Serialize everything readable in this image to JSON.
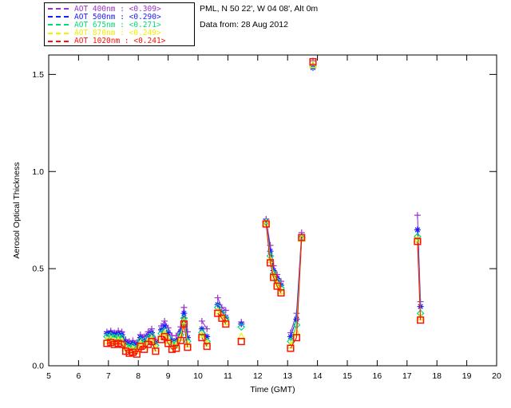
{
  "header": {
    "location_line": "PML, N 50 22', W 04 08', Alt 0m",
    "date_line": "Data from: 28 Aug 2012"
  },
  "chart_data": {
    "type": "line",
    "title": "",
    "xlabel": "Time (GMT)",
    "ylabel": "Aerosol Optical Thickness",
    "xlim": [
      5,
      20
    ],
    "ylim": [
      0,
      1.6
    ],
    "xticks": [
      5,
      6,
      7,
      8,
      9,
      10,
      11,
      12,
      13,
      14,
      15,
      16,
      17,
      18,
      19,
      20
    ],
    "yticks": [
      0.0,
      0.5,
      1.0,
      1.5
    ],
    "grid": false,
    "legend_position": "outside-top-left",
    "series": [
      {
        "name": "AOT 400nm",
        "mean": "<0.309>",
        "legend_label": "AOT  400nm : <0.309>",
        "color": "#9933cc",
        "symbol": "plus",
        "segments": [
          [
            [
              6.95,
              0.175
            ],
            [
              7.08,
              0.18
            ],
            [
              7.2,
              0.17
            ],
            [
              7.33,
              0.18
            ],
            [
              7.45,
              0.175
            ],
            [
              7.58,
              0.135
            ],
            [
              7.7,
              0.125
            ],
            [
              7.82,
              0.13
            ],
            [
              7.95,
              0.12
            ],
            [
              8.07,
              0.16
            ],
            [
              8.2,
              0.15
            ],
            [
              8.33,
              0.175
            ],
            [
              8.45,
              0.19
            ],
            [
              8.58,
              0.135
            ]
          ],
          [
            [
              8.77,
              0.205
            ],
            [
              8.88,
              0.23
            ],
            [
              9.0,
              0.195
            ],
            [
              9.13,
              0.155
            ],
            [
              9.27,
              0.155
            ],
            [
              9.42,
              0.2
            ],
            [
              9.53,
              0.3
            ],
            [
              9.65,
              0.175
            ]
          ],
          [
            [
              10.13,
              0.23
            ],
            [
              10.3,
              0.19
            ]
          ],
          [
            [
              10.66,
              0.35
            ],
            [
              10.8,
              0.3
            ],
            [
              10.93,
              0.285
            ]
          ],
          [
            [
              11.45,
              0.225
            ]
          ],
          [
            [
              12.28,
              0.755
            ],
            [
              12.42,
              0.62
            ],
            [
              12.53,
              0.515
            ],
            [
              12.65,
              0.47
            ],
            [
              12.78,
              0.435
            ]
          ],
          [
            [
              13.1,
              0.17
            ],
            [
              13.3,
              0.27
            ],
            [
              13.47,
              0.685
            ]
          ],
          [
            [
              13.85,
              1.57
            ]
          ],
          [
            [
              17.35,
              0.775
            ],
            [
              17.45,
              0.33
            ]
          ]
        ]
      },
      {
        "name": "AOT 500nm",
        "mean": "<0.290>",
        "legend_label": "AOT  500nm : <0.290>",
        "color": "#1a1aff",
        "symbol": "asterisk",
        "segments": [
          [
            [
              6.95,
              0.165
            ],
            [
              7.08,
              0.17
            ],
            [
              7.2,
              0.16
            ],
            [
              7.33,
              0.165
            ],
            [
              7.45,
              0.16
            ],
            [
              7.58,
              0.12
            ],
            [
              7.7,
              0.11
            ],
            [
              7.82,
              0.115
            ],
            [
              7.95,
              0.105
            ],
            [
              8.07,
              0.145
            ],
            [
              8.2,
              0.13
            ],
            [
              8.33,
              0.155
            ],
            [
              8.45,
              0.17
            ],
            [
              8.58,
              0.12
            ]
          ],
          [
            [
              8.77,
              0.185
            ],
            [
              8.88,
              0.205
            ],
            [
              9.0,
              0.17
            ],
            [
              9.13,
              0.13
            ],
            [
              9.27,
              0.13
            ],
            [
              9.42,
              0.175
            ],
            [
              9.53,
              0.27
            ],
            [
              9.65,
              0.145
            ]
          ],
          [
            [
              10.13,
              0.19
            ],
            [
              10.3,
              0.15
            ]
          ],
          [
            [
              10.66,
              0.315
            ],
            [
              10.8,
              0.275
            ],
            [
              10.93,
              0.25
            ]
          ],
          [
            [
              11.45,
              0.215
            ]
          ],
          [
            [
              12.28,
              0.745
            ],
            [
              12.42,
              0.59
            ],
            [
              12.53,
              0.49
            ],
            [
              12.65,
              0.45
            ],
            [
              12.78,
              0.415
            ]
          ],
          [
            [
              13.1,
              0.15
            ],
            [
              13.3,
              0.24
            ],
            [
              13.47,
              0.665
            ]
          ],
          [
            [
              13.85,
              1.535
            ]
          ],
          [
            [
              17.35,
              0.7
            ],
            [
              17.45,
              0.305
            ]
          ]
        ]
      },
      {
        "name": "AOT 675nm",
        "mean": "<0.271>",
        "legend_label": "AOT  675nm : <0.271>",
        "color": "#00dd77",
        "symbol": "diamond",
        "segments": [
          [
            [
              6.95,
              0.15
            ],
            [
              7.08,
              0.155
            ],
            [
              7.2,
              0.145
            ],
            [
              7.33,
              0.15
            ],
            [
              7.45,
              0.145
            ],
            [
              7.58,
              0.105
            ],
            [
              7.7,
              0.095
            ],
            [
              7.82,
              0.1
            ],
            [
              7.95,
              0.09
            ],
            [
              8.07,
              0.13
            ],
            [
              8.2,
              0.115
            ],
            [
              8.33,
              0.14
            ],
            [
              8.45,
              0.155
            ],
            [
              8.58,
              0.105
            ]
          ],
          [
            [
              8.77,
              0.165
            ],
            [
              8.88,
              0.18
            ],
            [
              9.0,
              0.145
            ],
            [
              9.13,
              0.115
            ],
            [
              9.27,
              0.115
            ],
            [
              9.42,
              0.16
            ],
            [
              9.53,
              0.245
            ],
            [
              9.65,
              0.125
            ]
          ],
          [
            [
              10.13,
              0.17
            ],
            [
              10.3,
              0.125
            ]
          ],
          [
            [
              10.66,
              0.3
            ],
            [
              10.8,
              0.27
            ],
            [
              10.93,
              0.24
            ]
          ],
          [
            [
              11.45,
              0.2
            ]
          ],
          [
            [
              12.28,
              0.74
            ],
            [
              12.42,
              0.565
            ],
            [
              12.53,
              0.475
            ],
            [
              12.65,
              0.435
            ],
            [
              12.78,
              0.4
            ]
          ],
          [
            [
              13.1,
              0.125
            ],
            [
              13.3,
              0.21
            ],
            [
              13.47,
              0.66
            ]
          ],
          [
            [
              13.85,
              1.545
            ]
          ],
          [
            [
              17.35,
              0.665
            ],
            [
              17.45,
              0.27
            ]
          ]
        ]
      },
      {
        "name": "AOT 870nm",
        "mean": "<0.249>",
        "legend_label": "AOT  870nm : <0.249>",
        "color": "#f0f000",
        "symbol": "triangle",
        "segments": [
          [
            [
              6.95,
              0.13
            ],
            [
              7.08,
              0.135
            ],
            [
              7.2,
              0.125
            ],
            [
              7.33,
              0.13
            ],
            [
              7.45,
              0.125
            ],
            [
              7.58,
              0.09
            ],
            [
              7.7,
              0.08
            ],
            [
              7.82,
              0.085
            ],
            [
              7.95,
              0.075
            ],
            [
              8.07,
              0.115
            ],
            [
              8.2,
              0.1
            ],
            [
              8.33,
              0.125
            ],
            [
              8.45,
              0.14
            ],
            [
              8.58,
              0.09
            ]
          ],
          [
            [
              8.77,
              0.15
            ],
            [
              8.88,
              0.165
            ],
            [
              9.0,
              0.13
            ],
            [
              9.13,
              0.1
            ],
            [
              9.27,
              0.105
            ],
            [
              9.42,
              0.145
            ],
            [
              9.53,
              0.23
            ],
            [
              9.65,
              0.11
            ]
          ],
          [
            [
              10.13,
              0.16
            ],
            [
              10.3,
              0.115
            ]
          ],
          [
            [
              10.66,
              0.28
            ],
            [
              10.8,
              0.255
            ],
            [
              10.93,
              0.225
            ]
          ],
          [
            [
              11.45,
              0.15
            ]
          ],
          [
            [
              12.28,
              0.735
            ],
            [
              12.42,
              0.545
            ],
            [
              12.53,
              0.465
            ],
            [
              12.65,
              0.42
            ],
            [
              12.78,
              0.385
            ]
          ],
          [
            [
              13.1,
              0.105
            ],
            [
              13.3,
              0.17
            ],
            [
              13.47,
              0.655
            ]
          ],
          [
            [
              13.85,
              1.55
            ]
          ],
          [
            [
              17.35,
              0.65
            ],
            [
              17.45,
              0.25
            ]
          ]
        ]
      },
      {
        "name": "AOT 1020nm",
        "mean": "<0.241>",
        "legend_label": "AOT 1020nm : <0.241>",
        "color": "#ff1100",
        "symbol": "square",
        "segments": [
          [
            [
              6.95,
              0.115
            ],
            [
              7.08,
              0.12
            ],
            [
              7.2,
              0.11
            ],
            [
              7.33,
              0.115
            ],
            [
              7.45,
              0.11
            ],
            [
              7.58,
              0.075
            ],
            [
              7.7,
              0.065
            ],
            [
              7.82,
              0.07
            ],
            [
              7.95,
              0.06
            ],
            [
              8.07,
              0.1
            ],
            [
              8.2,
              0.085
            ],
            [
              8.33,
              0.11
            ],
            [
              8.45,
              0.125
            ],
            [
              8.58,
              0.075
            ]
          ],
          [
            [
              8.77,
              0.135
            ],
            [
              8.88,
              0.15
            ],
            [
              9.0,
              0.115
            ],
            [
              9.13,
              0.085
            ],
            [
              9.27,
              0.09
            ],
            [
              9.42,
              0.13
            ],
            [
              9.53,
              0.215
            ],
            [
              9.65,
              0.095
            ]
          ],
          [
            [
              10.13,
              0.145
            ],
            [
              10.3,
              0.1
            ]
          ],
          [
            [
              10.66,
              0.27
            ],
            [
              10.8,
              0.245
            ],
            [
              10.93,
              0.215
            ]
          ],
          [
            [
              11.45,
              0.125
            ]
          ],
          [
            [
              12.28,
              0.73
            ],
            [
              12.42,
              0.53
            ],
            [
              12.53,
              0.455
            ],
            [
              12.65,
              0.41
            ],
            [
              12.78,
              0.375
            ]
          ],
          [
            [
              13.1,
              0.09
            ],
            [
              13.3,
              0.145
            ],
            [
              13.47,
              0.66
            ]
          ],
          [
            [
              13.85,
              1.565
            ]
          ],
          [
            [
              17.35,
              0.64
            ],
            [
              17.45,
              0.235
            ]
          ]
        ]
      }
    ]
  }
}
